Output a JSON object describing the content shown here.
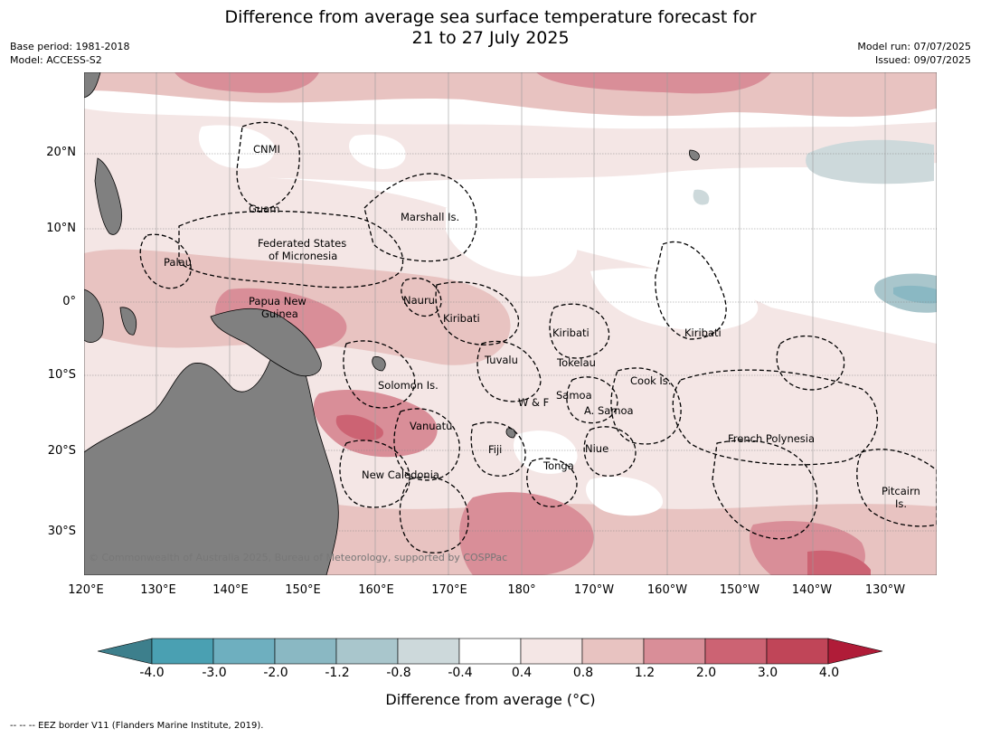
{
  "title_line1": "Difference from average sea surface temperature forecast for",
  "title_line2": "21 to 27 July 2025",
  "meta_left": [
    "Base period: 1981-2018",
    "Model: ACCESS-S2"
  ],
  "meta_right": [
    "Model run: 07/07/2025",
    "Issued: 09/07/2025"
  ],
  "lat_ticks": [
    "20°N",
    "10°N",
    "0°",
    "10°S",
    "20°S",
    "30°S"
  ],
  "lon_ticks": [
    "120°E",
    "130°E",
    "140°E",
    "150°E",
    "160°E",
    "170°E",
    "180°",
    "170°W",
    "160°W",
    "150°W",
    "140°W",
    "130°W"
  ],
  "place_labels": [
    "CNMI",
    "Guam",
    "Marshall Is.",
    "Federated States",
    "of Micronesia",
    "Palau",
    "Papua New",
    "Guinea",
    "Nauru",
    "Kiribati",
    "Kiribati",
    "Kiribati",
    "Tuvalu",
    "Tokelau",
    "Cook Is.",
    "Solomon Is.",
    "Samoa",
    "W & F",
    "A. Samoa",
    "Vanuatu",
    "Fiji",
    "Niue",
    "French Polynesia",
    "Tonga",
    "New Caledonia",
    "Pitcairn",
    "Is."
  ],
  "copyright": "© Commonwealth of Australia 2025, Bureau of Meteorology, supported by COSPPac",
  "colorbar": {
    "labels": [
      "-4.0",
      "-3.0",
      "-2.0",
      "-1.2",
      "-0.8",
      "-0.4",
      "0.4",
      "0.8",
      "1.2",
      "2.0",
      "3.0",
      "4.0"
    ],
    "colors": [
      "#3d7f8c",
      "#4aa0b2",
      "#6eafbf",
      "#8ab8c3",
      "#a9c6cc",
      "#cdd9db",
      "#ffffff",
      "#f4e6e5",
      "#e8c3c1",
      "#d98e98",
      "#cc6373",
      "#c04558",
      "#b01c38"
    ],
    "title": "Difference from average (°C)"
  },
  "footer": "--  --  -- EEZ border V11 (Flanders Marine Institute, 2019)."
}
